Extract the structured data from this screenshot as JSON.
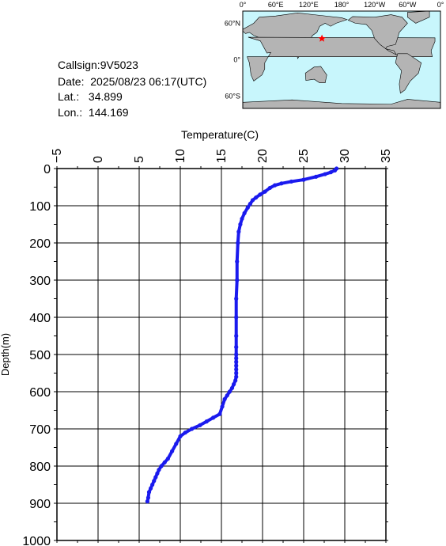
{
  "station": {
    "callsign": "Callsign:9V5023",
    "date": "Date:  2025/08/23 06:17(UTC)",
    "lat": "Lat.:   34.899",
    "lon": "Lon.:  144.169"
  },
  "map": {
    "lon_labels": [
      "0°",
      "60°E",
      "120°E",
      "180°",
      "120°W",
      "60°W",
      "0°"
    ],
    "lat_labels": [
      "60°N",
      "0°",
      "60°S"
    ],
    "ocean_color": "#c8f6fc",
    "land_color": "#b4b4b4",
    "marker_color": "#ff0000",
    "marker_lat": 34.899,
    "marker_lon": 144.169
  },
  "chart_data": {
    "type": "line",
    "xlabel": "Temperature(C)",
    "ylabel": "Depth(m)",
    "xlim": [
      -5,
      35
    ],
    "ylim": [
      0,
      1000
    ],
    "y_inverted": true,
    "x_ticks": [
      -5,
      0,
      5,
      10,
      15,
      20,
      25,
      30,
      35
    ],
    "y_ticks": [
      0,
      100,
      200,
      300,
      400,
      500,
      600,
      700,
      800,
      900,
      1000
    ],
    "grid": true,
    "series_color": "#1a1aee",
    "series": [
      {
        "temperature": [
          29.0,
          28.8,
          28.3,
          27.6,
          26.5,
          25.0,
          23.5,
          22.3,
          21.5,
          20.9,
          20.3,
          19.7,
          19.2,
          18.8,
          18.5,
          18.2,
          17.8,
          17.5,
          17.3,
          17.1,
          17.0,
          16.9,
          16.9,
          16.8,
          16.8,
          16.8,
          16.8,
          16.8,
          16.8,
          16.8,
          16.8,
          16.8,
          16.8,
          16.8,
          16.7,
          16.5,
          16.3,
          16.0,
          15.7,
          15.4,
          15.1,
          14.8,
          14.0,
          13.2,
          12.4,
          11.4,
          10.6,
          10.0,
          9.5,
          9.0,
          8.5,
          8.1,
          7.7,
          7.4,
          7.2,
          7.0,
          6.8,
          6.6,
          6.4,
          6.2,
          6.1,
          6.0
        ],
        "depth": [
          0,
          5,
          10,
          15,
          22,
          30,
          35,
          40,
          45,
          52,
          62,
          70,
          78,
          85,
          95,
          105,
          120,
          135,
          150,
          170,
          200,
          250,
          300,
          350,
          400,
          450,
          480,
          500,
          510,
          520,
          530,
          540,
          550,
          560,
          570,
          580,
          590,
          600,
          610,
          620,
          640,
          660,
          670,
          680,
          690,
          700,
          710,
          720,
          740,
          760,
          780,
          790,
          800,
          810,
          820,
          830,
          840,
          850,
          860,
          870,
          885,
          895
        ]
      }
    ]
  }
}
